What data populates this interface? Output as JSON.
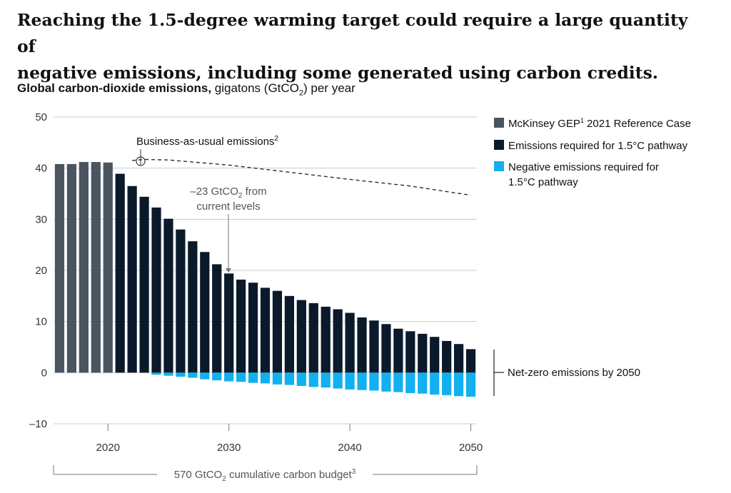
{
  "headline_line1": "Reaching the 1.5-degree warming target could require a large quantity of",
  "headline_line2": "negative emissions, including some generated using carbon credits.",
  "subtitle": {
    "bold": "Global carbon-dioxide emissions,",
    "pre": " gigatons (GtCO",
    "sub": "2",
    "post": ") per year"
  },
  "colors": {
    "reference": "#4a5560",
    "required": "#0b1a2a",
    "negative": "#12b0f0",
    "grid": "#cccccc",
    "dashed": "#1f2f46"
  },
  "annotations": {
    "bau_label": "Business-as-usual emissions",
    "bau_sup": "2",
    "gap_line1": "–23 GtCO",
    "gap_sub": "2",
    "gap_line1b": " from",
    "gap_line2": "current levels",
    "net_zero": "Net-zero emissions by 2050",
    "budget_pre": "570 GtCO",
    "budget_sub": "2",
    "budget_post": " cumulative carbon budget",
    "budget_sup": "3"
  },
  "chart_data": {
    "type": "bar",
    "title": "Global carbon-dioxide emissions, gigatons (GtCO2) per year",
    "xlabel": "",
    "ylabel": "",
    "ylim": [
      -10,
      50
    ],
    "xlim": [
      2015.5,
      2050.5
    ],
    "x_ticks": [
      2020,
      2030,
      2040,
      2050
    ],
    "y_ticks": [
      50,
      40,
      30,
      20,
      10,
      0,
      -10
    ],
    "grid": true,
    "legend_position": "right",
    "series": [
      {
        "name": "McKinsey GEP¹ 2021 Reference Case",
        "legend_label": "McKinsey GEP",
        "legend_sup": "1",
        "legend_rest": " 2021 Reference Case",
        "x": [
          2016,
          2017,
          2018,
          2019,
          2020
        ],
        "values": [
          40.8,
          40.8,
          41.2,
          41.2,
          41.1
        ]
      },
      {
        "name": "Emissions required for 1.5°C pathway",
        "legend_label": "Emissions required for 1.5°C pathway",
        "x": [
          2021,
          2022,
          2023,
          2024,
          2025,
          2026,
          2027,
          2028,
          2029,
          2030,
          2031,
          2032,
          2033,
          2034,
          2035,
          2036,
          2037,
          2038,
          2039,
          2040,
          2041,
          2042,
          2043,
          2044,
          2045,
          2046,
          2047,
          2048,
          2049,
          2050
        ],
        "values": [
          38.9,
          36.5,
          34.4,
          32.3,
          30.1,
          28.0,
          25.7,
          23.6,
          21.2,
          19.4,
          18.2,
          17.6,
          16.6,
          16.0,
          15.0,
          14.2,
          13.6,
          12.9,
          12.4,
          11.7,
          10.8,
          10.2,
          9.5,
          8.6,
          8.1,
          7.6,
          7.0,
          6.2,
          5.6,
          4.6
        ]
      },
      {
        "name": "Negative emissions required for 1.5°C pathway",
        "legend_label_line1": "Negative emissions required for",
        "legend_label_line2": "1.5°C pathway",
        "x": [
          2021,
          2022,
          2023,
          2024,
          2025,
          2026,
          2027,
          2028,
          2029,
          2030,
          2031,
          2032,
          2033,
          2034,
          2035,
          2036,
          2037,
          2038,
          2039,
          2040,
          2041,
          2042,
          2043,
          2044,
          2045,
          2046,
          2047,
          2048,
          2049,
          2050
        ],
        "values": [
          0,
          0,
          0,
          -0.4,
          -0.6,
          -0.8,
          -1.0,
          -1.3,
          -1.5,
          -1.7,
          -1.8,
          -2.0,
          -2.1,
          -2.3,
          -2.4,
          -2.6,
          -2.8,
          -2.9,
          -3.1,
          -3.3,
          -3.4,
          -3.5,
          -3.7,
          -3.8,
          -4.0,
          -4.1,
          -4.3,
          -4.4,
          -4.6,
          -4.7
        ]
      },
      {
        "name": "Business-as-usual emissions",
        "type": "line",
        "style": "dashed",
        "x": [
          2022,
          2023,
          2025,
          2030,
          2035,
          2040,
          2045,
          2050
        ],
        "values": [
          41.5,
          41.7,
          41.6,
          40.6,
          39.2,
          37.8,
          36.5,
          34.7
        ]
      }
    ]
  }
}
